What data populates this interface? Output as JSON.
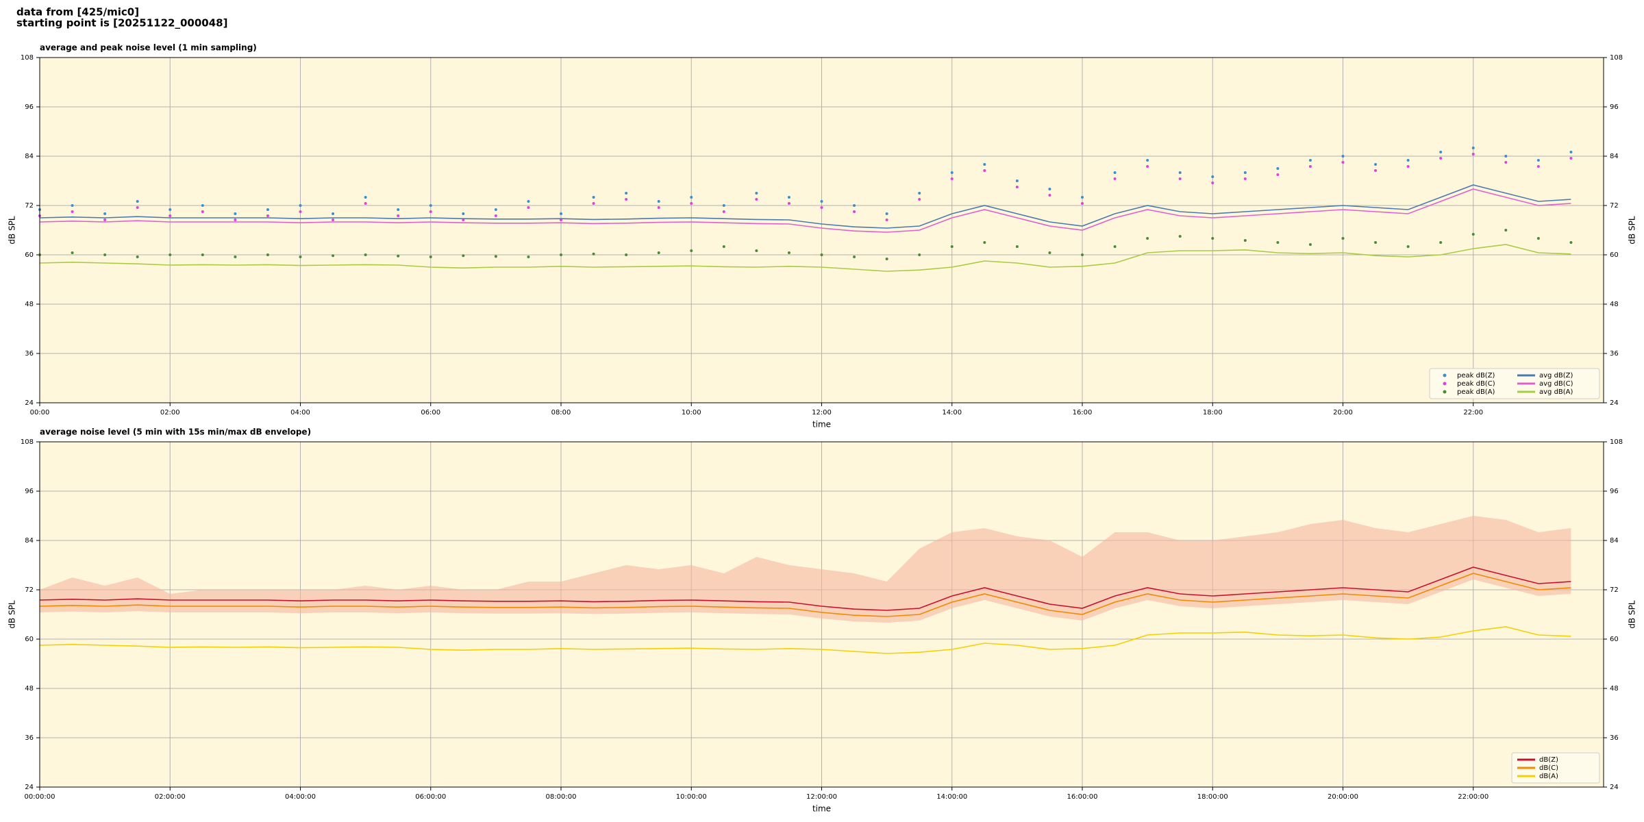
{
  "header": {
    "lines": [
      "data from [425/mic0]",
      "starting point is [20251122_000048]"
    ]
  },
  "chart_data": [
    {
      "type": "line",
      "title": "average and peak noise level (1 min sampling)",
      "xlabel": "time",
      "ylabel": "dB SPL",
      "y2label": "dB SPL",
      "background": "#fff7dc",
      "grid": true,
      "legend": "lower right",
      "legend_columns": 2,
      "xlim": [
        0,
        24
      ],
      "ylim": [
        24,
        108
      ],
      "xticks": [
        {
          "value": 0,
          "label": "00:00"
        },
        {
          "value": 2,
          "label": "02:00"
        },
        {
          "value": 4,
          "label": "04:00"
        },
        {
          "value": 6,
          "label": "06:00"
        },
        {
          "value": 8,
          "label": "08:00"
        },
        {
          "value": 10,
          "label": "10:00"
        },
        {
          "value": 12,
          "label": "12:00"
        },
        {
          "value": 14,
          "label": "14:00"
        },
        {
          "value": 16,
          "label": "16:00"
        },
        {
          "value": 18,
          "label": "18:00"
        },
        {
          "value": 20,
          "label": "20:00"
        },
        {
          "value": 22,
          "label": "22:00"
        }
      ],
      "yticks": [
        24,
        36,
        48,
        60,
        72,
        84,
        96,
        108
      ],
      "x": [
        0,
        0.5,
        1,
        1.5,
        2,
        2.5,
        3,
        3.5,
        4,
        4.5,
        5,
        5.5,
        6,
        6.5,
        7,
        7.5,
        8,
        8.5,
        9,
        9.5,
        10,
        10.5,
        11,
        11.5,
        12,
        12.5,
        13,
        13.5,
        14,
        14.5,
        15,
        15.5,
        16,
        16.5,
        17,
        17.5,
        18,
        18.5,
        19,
        19.5,
        20,
        20.5,
        21,
        21.5,
        22,
        22.5,
        23,
        23.5
      ],
      "series": [
        {
          "name": "peak dB(Z)",
          "style": "dot",
          "color": "#3a8fd0",
          "values": [
            71,
            72,
            70,
            73,
            71,
            72,
            70,
            71,
            72,
            70,
            74,
            71,
            72,
            70,
            71,
            73,
            70,
            74,
            75,
            73,
            74,
            72,
            75,
            74,
            73,
            72,
            70,
            75,
            80,
            82,
            78,
            76,
            74,
            80,
            83,
            80,
            79,
            80,
            81,
            83,
            84,
            82,
            83,
            85,
            86,
            84,
            83,
            85
          ]
        },
        {
          "name": "peak dB(C)",
          "style": "dot",
          "color": "#e040e0",
          "values": [
            69.5,
            70.5,
            68.5,
            71.5,
            69.5,
            70.5,
            68.5,
            69.5,
            70.5,
            68.5,
            72.5,
            69.5,
            70.5,
            68.5,
            69.5,
            71.5,
            68.5,
            72.5,
            73.5,
            71.5,
            72.5,
            70.5,
            73.5,
            72.5,
            71.5,
            70.5,
            68.5,
            73.5,
            78.5,
            80.5,
            76.5,
            74.5,
            72.5,
            78.5,
            81.5,
            78.5,
            77.5,
            78.5,
            79.5,
            81.5,
            82.5,
            80.5,
            81.5,
            83.5,
            84.5,
            82.5,
            81.5,
            83.5
          ]
        },
        {
          "name": "peak dB(A)",
          "style": "dot",
          "color": "#4a8a3a",
          "values": [
            60,
            60.5,
            60,
            59.5,
            60,
            60,
            59.5,
            60,
            59.5,
            59.8,
            60,
            59.7,
            59.5,
            59.8,
            59.6,
            59.5,
            60,
            60.2,
            60,
            60.5,
            61,
            62,
            61,
            60.5,
            60,
            59.5,
            59,
            60,
            62,
            63,
            62,
            60.5,
            60,
            62,
            64,
            64.5,
            64,
            63.5,
            63,
            62.5,
            64,
            63,
            62,
            63,
            65,
            66,
            64,
            63
          ]
        },
        {
          "name": "avg dB(Z)",
          "style": "line",
          "color": "#4a7ab0",
          "values": [
            69,
            69.2,
            69,
            69.3,
            69,
            69,
            69,
            69,
            68.8,
            69,
            69,
            68.8,
            69,
            68.8,
            68.7,
            68.7,
            68.8,
            68.6,
            68.7,
            68.9,
            69,
            68.8,
            68.6,
            68.5,
            67.5,
            66.8,
            66.5,
            67,
            70,
            72,
            70,
            68,
            67,
            70,
            72,
            70.5,
            70,
            70.5,
            71,
            71.5,
            72,
            71.5,
            71,
            74,
            77,
            75,
            73,
            73.5
          ]
        },
        {
          "name": "avg dB(C)",
          "style": "line",
          "color": "#e060d0",
          "values": [
            68,
            68.2,
            68,
            68.3,
            68,
            68,
            68,
            68,
            67.8,
            68,
            68,
            67.8,
            68,
            67.8,
            67.7,
            67.7,
            67.8,
            67.6,
            67.7,
            67.9,
            68,
            67.8,
            67.6,
            67.5,
            66.5,
            65.8,
            65.5,
            66,
            69,
            71,
            69,
            67,
            66,
            69,
            71,
            69.5,
            69,
            69.5,
            70,
            70.5,
            71,
            70.5,
            70,
            73,
            76,
            74,
            72,
            72.5
          ]
        },
        {
          "name": "avg dB(A)",
          "style": "line",
          "color": "#a8cc40",
          "values": [
            58,
            58.2,
            58,
            57.8,
            57.5,
            57.6,
            57.5,
            57.6,
            57.4,
            57.5,
            57.6,
            57.5,
            57,
            56.8,
            57,
            57,
            57.2,
            57,
            57.1,
            57.2,
            57.3,
            57.1,
            57,
            57.2,
            57,
            56.5,
            56,
            56.3,
            57,
            58.5,
            58,
            57,
            57.2,
            58,
            60.5,
            61,
            61,
            61.2,
            60.5,
            60.3,
            60.5,
            59.8,
            59.5,
            60,
            61.5,
            62.5,
            60.5,
            60.2
          ]
        }
      ]
    },
    {
      "type": "line",
      "title": "average noise level (5 min with 15s min/max dB envelope)",
      "xlabel": "time",
      "ylabel": "dB SPL",
      "y2label": "dB SPL",
      "background": "#fff7dc",
      "grid": true,
      "legend": "lower right",
      "legend_columns": 1,
      "xlim": [
        0,
        24
      ],
      "ylim": [
        24,
        108
      ],
      "xticks": [
        {
          "value": 0,
          "label": "00:00:00"
        },
        {
          "value": 2,
          "label": "02:00:00"
        },
        {
          "value": 4,
          "label": "04:00:00"
        },
        {
          "value": 6,
          "label": "06:00:00"
        },
        {
          "value": 8,
          "label": "08:00:00"
        },
        {
          "value": 10,
          "label": "10:00:00"
        },
        {
          "value": 12,
          "label": "12:00:00"
        },
        {
          "value": 14,
          "label": "14:00:00"
        },
        {
          "value": 16,
          "label": "16:00:00"
        },
        {
          "value": 18,
          "label": "18:00:00"
        },
        {
          "value": 20,
          "label": "20:00:00"
        },
        {
          "value": 22,
          "label": "22:00:00"
        }
      ],
      "yticks": [
        24,
        36,
        48,
        60,
        72,
        84,
        96,
        108
      ],
      "x": [
        0,
        0.5,
        1,
        1.5,
        2,
        2.5,
        3,
        3.5,
        4,
        4.5,
        5,
        5.5,
        6,
        6.5,
        7,
        7.5,
        8,
        8.5,
        9,
        9.5,
        10,
        10.5,
        11,
        11.5,
        12,
        12.5,
        13,
        13.5,
        14,
        14.5,
        15,
        15.5,
        16,
        16.5,
        17,
        17.5,
        18,
        18.5,
        19,
        19.5,
        20,
        20.5,
        21,
        21.5,
        22,
        22.5,
        23,
        23.5
      ],
      "band": {
        "color": "#f4b8a0",
        "lower": [
          66.5,
          66.7,
          66.5,
          66.8,
          66.5,
          66.5,
          66.5,
          66.5,
          66.3,
          66.5,
          66.5,
          66.3,
          66.5,
          66.3,
          66.2,
          66.2,
          66.3,
          66.1,
          66.2,
          66.4,
          66.5,
          66.3,
          66.1,
          66,
          65,
          64.3,
          64,
          64.5,
          67.5,
          69.5,
          67.5,
          65.5,
          64.5,
          67.5,
          69.5,
          68,
          67.5,
          68,
          68.5,
          69,
          69.5,
          69,
          68.5,
          71.5,
          74.5,
          72.5,
          70.5,
          71
        ],
        "upper": [
          72,
          75,
          73,
          75,
          71,
          72,
          72,
          72,
          72,
          72,
          73,
          72,
          73,
          72,
          72,
          74,
          74,
          76,
          78,
          77,
          78,
          76,
          80,
          78,
          77,
          76,
          74,
          82,
          86,
          87,
          85,
          84,
          80,
          86,
          86,
          84,
          84,
          85,
          86,
          88,
          89,
          87,
          86,
          88,
          90,
          89,
          86,
          87
        ]
      },
      "series": [
        {
          "name": "dB(Z)",
          "style": "line",
          "color": "#c8102e",
          "values": [
            69.5,
            69.7,
            69.5,
            69.8,
            69.5,
            69.5,
            69.5,
            69.5,
            69.3,
            69.5,
            69.5,
            69.3,
            69.5,
            69.3,
            69.2,
            69.2,
            69.3,
            69.1,
            69.2,
            69.4,
            69.5,
            69.3,
            69.1,
            69,
            68,
            67.3,
            67,
            67.5,
            70.5,
            72.5,
            70.5,
            68.5,
            67.5,
            70.5,
            72.5,
            71,
            70.5,
            71,
            71.5,
            72,
            72.5,
            72,
            71.5,
            74.5,
            77.5,
            75.5,
            73.5,
            74
          ]
        },
        {
          "name": "dB(C)",
          "style": "line",
          "color": "#f08a00",
          "values": [
            68,
            68.2,
            68,
            68.3,
            68,
            68,
            68,
            68,
            67.8,
            68,
            68,
            67.8,
            68,
            67.8,
            67.7,
            67.7,
            67.8,
            67.6,
            67.7,
            67.9,
            68,
            67.8,
            67.6,
            67.5,
            66.5,
            65.8,
            65.5,
            66,
            69,
            71,
            69,
            67,
            66,
            69,
            71,
            69.5,
            69,
            69.5,
            70,
            70.5,
            71,
            70.5,
            70,
            73,
            76,
            74,
            72,
            72.5
          ]
        },
        {
          "name": "dB(A)",
          "style": "line",
          "color": "#f5d000",
          "values": [
            58.5,
            58.7,
            58.5,
            58.3,
            58,
            58.1,
            58,
            58.1,
            57.9,
            58,
            58.1,
            58,
            57.5,
            57.3,
            57.5,
            57.5,
            57.7,
            57.5,
            57.6,
            57.7,
            57.8,
            57.6,
            57.5,
            57.7,
            57.5,
            57,
            56.5,
            56.8,
            57.5,
            59,
            58.5,
            57.5,
            57.7,
            58.5,
            61,
            61.5,
            61.5,
            61.7,
            61,
            60.8,
            61,
            60.3,
            60,
            60.5,
            62,
            63,
            61,
            60.7
          ]
        }
      ]
    }
  ]
}
